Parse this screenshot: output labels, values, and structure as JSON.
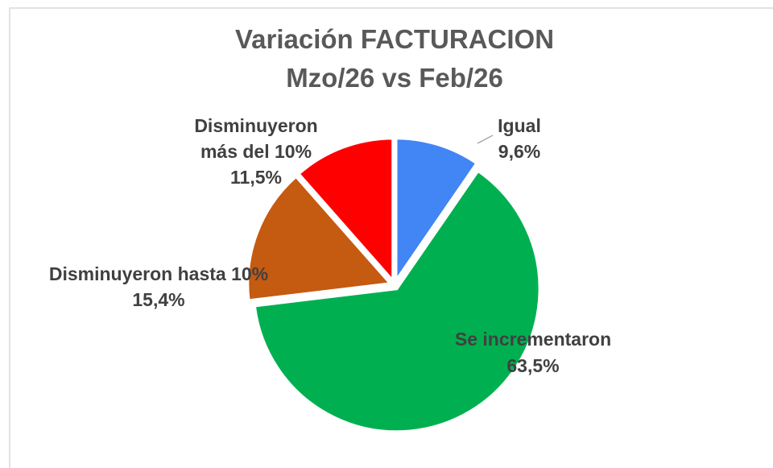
{
  "chart_data": {
    "type": "pie",
    "title": [
      "Variación FACTURACION",
      "Mzo/26 vs Feb/26"
    ],
    "categories": [
      "Igual",
      "Se incrementaron",
      "Disminuyeron hasta 10%",
      "Disminuyeron más del 10%"
    ],
    "values": [
      9.6,
      63.5,
      15.4,
      11.5
    ],
    "value_labels": [
      "9,6%",
      "63,5%",
      "15,4%",
      "11,5%"
    ],
    "colors": [
      "#4285f4",
      "#00b050",
      "#c55a11",
      "#ff0000"
    ]
  }
}
